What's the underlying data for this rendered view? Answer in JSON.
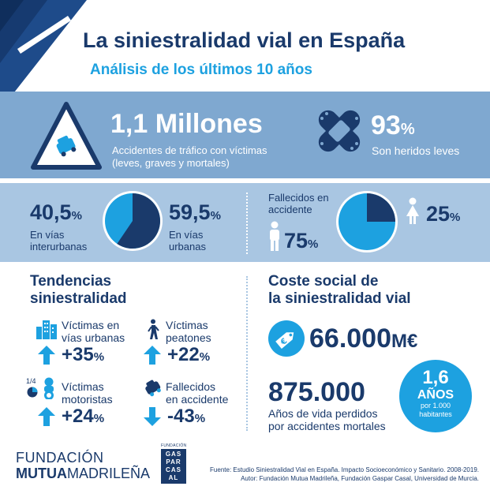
{
  "header": {
    "title": "La siniestralidad vial en España",
    "subtitle": "Análisis de los últimos 10 años"
  },
  "accidents": {
    "value": "1,1 Millones",
    "label_line1": "Accidentes de tráfico con víctimas",
    "label_line2": "(leves, graves y mortales)"
  },
  "injured": {
    "value": "93",
    "unit": "%",
    "label": "Son heridos leves"
  },
  "roads": {
    "interurban_value": "40,5",
    "interurban_label1": "En vías",
    "interurban_label2": "interurbanas",
    "urban_value": "59,5",
    "urban_label1": "En vías",
    "urban_label2": "urbanas",
    "unit": "%",
    "urban_share": 0.595
  },
  "deaths": {
    "label1": "Fallecidos en",
    "label2": "accidente",
    "male_value": "75",
    "female_value": "25",
    "unit": "%",
    "female_share": 0.25
  },
  "trends": {
    "title1": "Tendencias",
    "title2": "siniestralidad",
    "items": [
      {
        "label1": "Víctimas en",
        "label2": "vías urbanas",
        "value": "+35",
        "unit": "%"
      },
      {
        "label1": "Víctimas",
        "label2": "peatones",
        "value": "+22",
        "unit": "%"
      },
      {
        "label1": "Víctimas",
        "label2": "motoristas",
        "value": "+24",
        "unit": "%"
      },
      {
        "label1": "Fallecidos",
        "label2": "en accidente",
        "value": "-43",
        "unit": "%"
      }
    ],
    "quarter_label": "1/4"
  },
  "social_cost": {
    "title1": "Coste social de",
    "title2": "la siniestralidad vial",
    "cost_value": "66.000",
    "cost_unit": "M€",
    "years_value": "875.000",
    "years_label1": "Años de vida perdidos",
    "years_label2": "por accidentes mortales",
    "badge_value": "1,6",
    "badge_unit": "AÑOS",
    "badge_label1": "por 1.000",
    "badge_label2": "habitantes"
  },
  "footer": {
    "logo1_line1": "FUNDACIÓN",
    "logo1_line2a": "MUTUA",
    "logo1_line2b": "MADRILEÑA",
    "logo2_top": "FUNDACIÓN",
    "logo2_rows": [
      "GAS",
      "PAR",
      "CAS",
      "AL"
    ],
    "source": "Fuente: Estudio Siniestralidad Vial en España. Impacto Socioeconómico y Sanitario. 2008-2019.",
    "author": "Autor: Fundación Mutua Madrileña, Fundación Gaspar Casal, Universidad de Murcia."
  },
  "colors": {
    "navy": "#1a3a6b",
    "cyan": "#1da1e0",
    "band1": "#7fa8d0",
    "band2": "#a9c6e2"
  }
}
